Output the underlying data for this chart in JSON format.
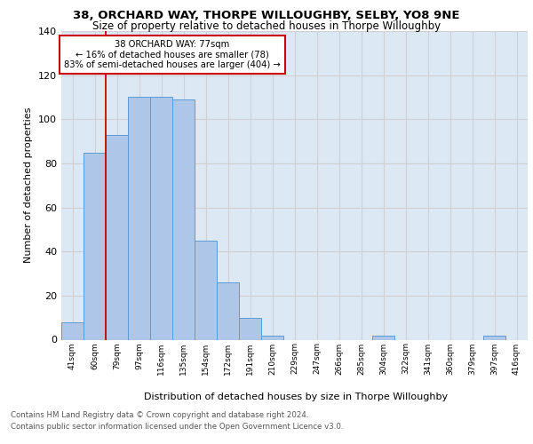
{
  "title1": "38, ORCHARD WAY, THORPE WILLOUGHBY, SELBY, YO8 9NE",
  "title2": "Size of property relative to detached houses in Thorpe Willoughby",
  "xlabel": "Distribution of detached houses by size in Thorpe Willoughby",
  "ylabel": "Number of detached properties",
  "categories": [
    "41sqm",
    "60sqm",
    "79sqm",
    "97sqm",
    "116sqm",
    "135sqm",
    "154sqm",
    "172sqm",
    "191sqm",
    "210sqm",
    "229sqm",
    "247sqm",
    "266sqm",
    "285sqm",
    "304sqm",
    "322sqm",
    "341sqm",
    "360sqm",
    "379sqm",
    "397sqm",
    "416sqm"
  ],
  "values": [
    8,
    85,
    93,
    110,
    110,
    109,
    45,
    26,
    10,
    2,
    0,
    0,
    0,
    0,
    2,
    0,
    0,
    0,
    0,
    2,
    0
  ],
  "bar_color": "#aec6e8",
  "bar_edge_color": "#5b9bd5",
  "annotation_lines": [
    "38 ORCHARD WAY: 77sqm",
    "← 16% of detached houses are smaller (78)",
    "83% of semi-detached houses are larger (404) →"
  ],
  "annotation_box_color": "#ffffff",
  "annotation_box_edge": "#cc0000",
  "vline_color": "#cc0000",
  "vline_x": 1.5,
  "ylim": [
    0,
    140
  ],
  "yticks": [
    0,
    20,
    40,
    60,
    80,
    100,
    120,
    140
  ],
  "grid_color": "#d0d0d0",
  "bg_color": "#dde8f5",
  "footer1": "Contains HM Land Registry data © Crown copyright and database right 2024.",
  "footer2": "Contains public sector information licensed under the Open Government Licence v3.0."
}
